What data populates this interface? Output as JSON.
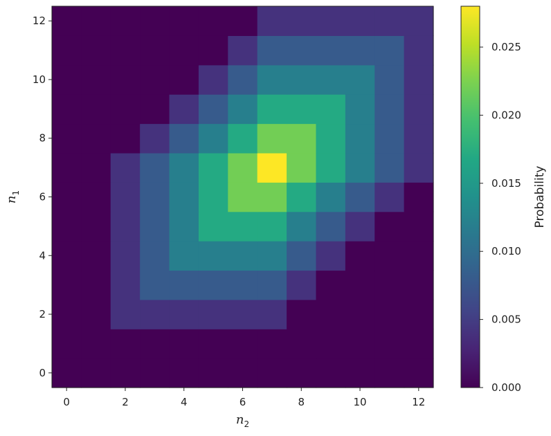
{
  "chart_data": {
    "type": "heatmap",
    "xlabel": "n",
    "xlabel_sub": "2",
    "ylabel": "n",
    "ylabel_sub": "1",
    "x_ticks": [
      "0",
      "2",
      "4",
      "6",
      "8",
      "10",
      "12"
    ],
    "y_ticks": [
      "0",
      "2",
      "4",
      "6",
      "8",
      "10",
      "12"
    ],
    "x_categories": [
      0,
      1,
      2,
      3,
      4,
      5,
      6,
      7,
      8,
      9,
      10,
      11,
      12
    ],
    "y_categories": [
      0,
      1,
      2,
      3,
      4,
      5,
      6,
      7,
      8,
      9,
      10,
      11,
      12
    ],
    "xlim": [
      -0.5,
      12.5
    ],
    "ylim": [
      -0.5,
      12.5
    ],
    "colormap": "viridis",
    "vmin": 0.0,
    "vmax": 0.028,
    "colorbar_label": "Probability",
    "colorbar_ticks": [
      "0.000",
      "0.005",
      "0.010",
      "0.015",
      "0.020",
      "0.025"
    ],
    "colorbar_tick_values": [
      0.0,
      0.005,
      0.01,
      0.015,
      0.02,
      0.025
    ],
    "values_row_order": "n1 from 0 (bottom) to 12 (top); each row lists n2 from 0 to 12",
    "values": [
      [
        0,
        0,
        0,
        0,
        0,
        0,
        0,
        0,
        0,
        0,
        0,
        0,
        0
      ],
      [
        0,
        0,
        0,
        0,
        0,
        0,
        0,
        0,
        0,
        0,
        0,
        0,
        0
      ],
      [
        0,
        0,
        0.004,
        0.004,
        0.004,
        0.004,
        0.004,
        0.004,
        0,
        0,
        0,
        0,
        0
      ],
      [
        0,
        0,
        0.004,
        0.008,
        0.008,
        0.008,
        0.008,
        0.008,
        0.004,
        0,
        0,
        0,
        0
      ],
      [
        0,
        0,
        0.004,
        0.008,
        0.012,
        0.012,
        0.012,
        0.012,
        0.008,
        0.004,
        0,
        0,
        0
      ],
      [
        0,
        0,
        0.004,
        0.008,
        0.012,
        0.017,
        0.017,
        0.017,
        0.012,
        0.008,
        0.004,
        0,
        0
      ],
      [
        0,
        0,
        0.004,
        0.008,
        0.012,
        0.017,
        0.022,
        0.022,
        0.017,
        0.012,
        0.008,
        0.004,
        0
      ],
      [
        0,
        0,
        0.004,
        0.008,
        0.012,
        0.017,
        0.022,
        0.028,
        0.022,
        0.017,
        0.012,
        0.008,
        0.004
      ],
      [
        0,
        0,
        0,
        0.004,
        0.008,
        0.012,
        0.017,
        0.022,
        0.022,
        0.017,
        0.012,
        0.008,
        0.004
      ],
      [
        0,
        0,
        0,
        0,
        0.004,
        0.008,
        0.012,
        0.017,
        0.017,
        0.017,
        0.012,
        0.008,
        0.004
      ],
      [
        0,
        0,
        0,
        0,
        0,
        0.004,
        0.008,
        0.012,
        0.012,
        0.012,
        0.012,
        0.008,
        0.004
      ],
      [
        0,
        0,
        0,
        0,
        0,
        0,
        0.004,
        0.008,
        0.008,
        0.008,
        0.008,
        0.008,
        0.004
      ],
      [
        0,
        0,
        0,
        0,
        0,
        0,
        0,
        0.004,
        0.004,
        0.004,
        0.004,
        0.004,
        0.004
      ]
    ]
  }
}
